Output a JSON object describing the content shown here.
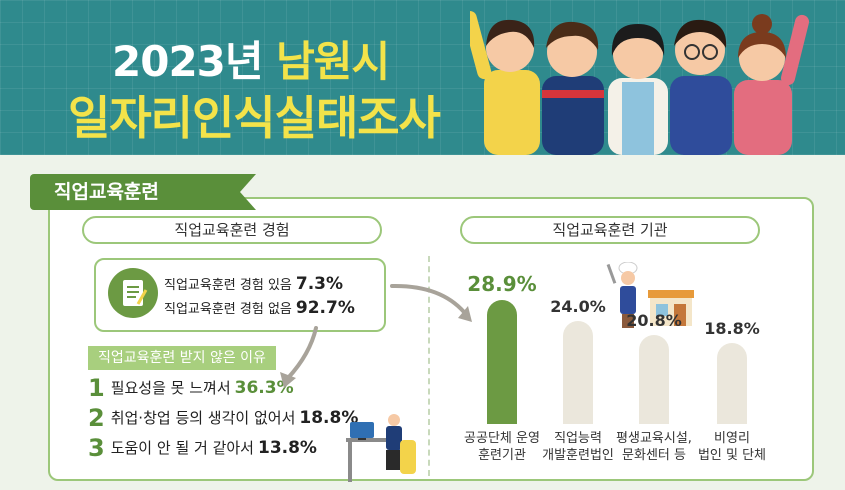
{
  "header": {
    "year_text": "2023년",
    "city_text": "남원시",
    "title_line2": "일자리인식실태조사"
  },
  "section": {
    "title": "직업교육훈련"
  },
  "left": {
    "pill_label": "직업교육훈련 경험",
    "experience": [
      {
        "label": "직업교육훈련 경험 있음",
        "value": "7.3%"
      },
      {
        "label": "직업교육훈련 경험 없음",
        "value": "92.7%"
      }
    ],
    "reasons_title": "직업교육훈련 받지 않은 이유",
    "reasons": [
      {
        "num": "1",
        "label": "필요성을 못 느껴서",
        "value": "36.3%"
      },
      {
        "num": "2",
        "label": "취업·창업 등의 생각이 없어서",
        "value": "18.8%"
      },
      {
        "num": "3",
        "label": "도움이 안 될 거 같아서",
        "value": "13.8%"
      }
    ]
  },
  "right": {
    "pill_label": "직업교육훈련 기관"
  },
  "chart_data": {
    "type": "bar",
    "categories": [
      "공공단체 운영 훈련기관",
      "직업능력 개발훈련법인",
      "평생교육시설, 문화센터 등",
      "비영리 법인 및 단체"
    ],
    "values": [
      28.9,
      24.0,
      20.8,
      18.8
    ],
    "value_labels": [
      "28.9%",
      "24.0%",
      "20.8%",
      "18.8%"
    ],
    "category_lines": [
      [
        "공공단체 운영",
        "훈련기관"
      ],
      [
        "직업능력",
        "개발훈련법인"
      ],
      [
        "평생교육시설,",
        "문화센터 등"
      ],
      [
        "비영리",
        "법인 및 단체"
      ]
    ],
    "colors": {
      "highlight": "#6c9a43",
      "default": "#ebe7dc"
    }
  }
}
